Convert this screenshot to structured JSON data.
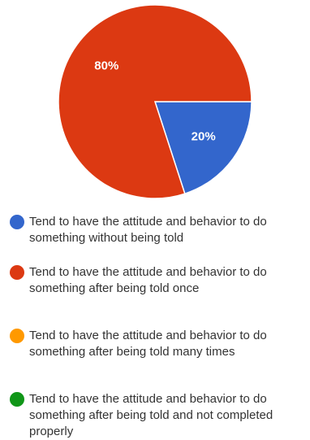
{
  "chart_data": {
    "type": "pie",
    "title": "",
    "slices": [
      {
        "label": "Tend to have the attitude and behavior to do something without being told",
        "value": 20,
        "display": "20%",
        "color": "#3366cc"
      },
      {
        "label": "Tend to have the attitude and behavior to do something after being told once",
        "value": 80,
        "display": "80%",
        "color": "#dc3912"
      },
      {
        "label": "Tend to have the attitude and behavior to do something after being told many times",
        "value": 0,
        "display": "",
        "color": "#ff9900"
      },
      {
        "label": "Tend to have the attitude and behavior to do something after being told and not completed properly",
        "value": 0,
        "display": "",
        "color": "#109618"
      }
    ],
    "legend_position": "bottom"
  }
}
